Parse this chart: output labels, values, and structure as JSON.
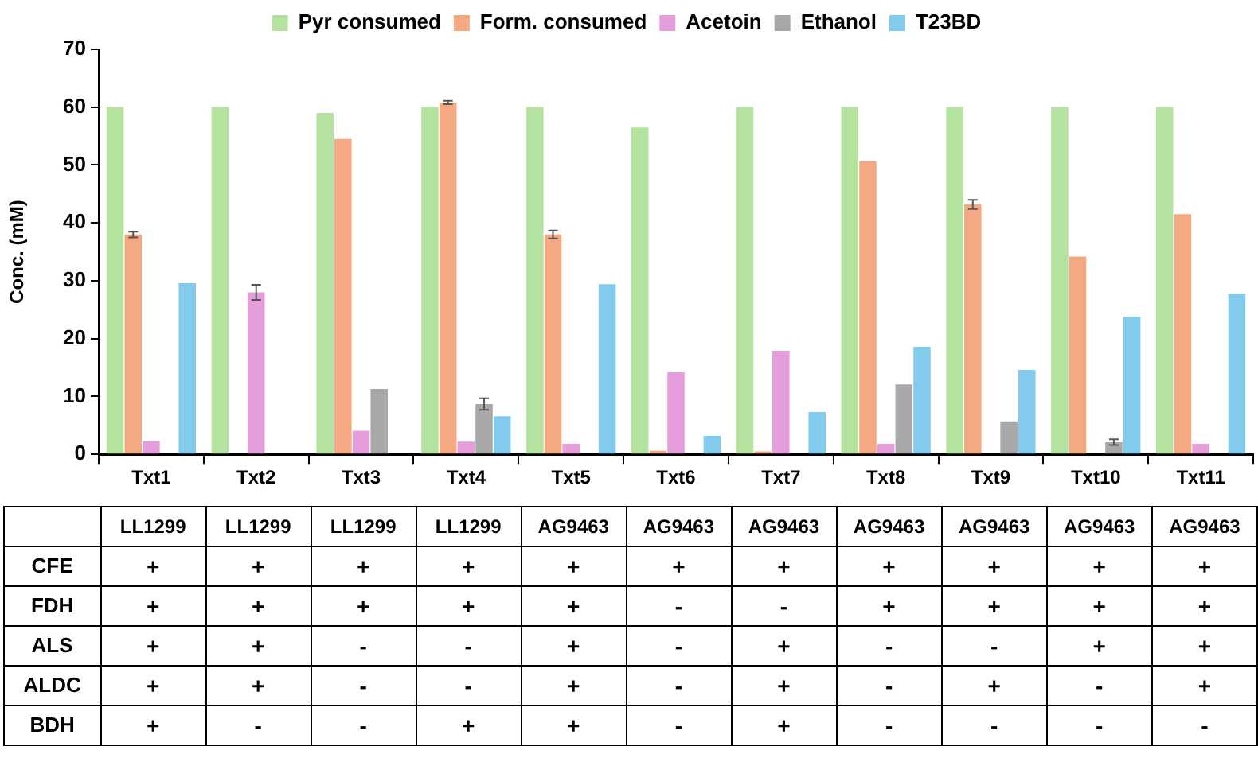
{
  "chart_data": [
    {
      "type": "bar",
      "ylabel": "Conc. (mM)",
      "categories": [
        "Txt1",
        "Txt2",
        "Txt3",
        "Txt4",
        "Txt5",
        "Txt6",
        "Txt7",
        "Txt8",
        "Txt9",
        "Txt10",
        "Txt11"
      ],
      "ylim": [
        0,
        70
      ],
      "yticks": [
        0,
        10,
        20,
        30,
        40,
        50,
        60,
        70
      ],
      "grid": false,
      "legend": "top",
      "series": [
        {
          "name": "Pyr consumed",
          "color": "#b4e3a0",
          "values": [
            60,
            60,
            59,
            60,
            60,
            56.5,
            60,
            60,
            60,
            60,
            60
          ]
        },
        {
          "name": "Form. consumed",
          "color": "#f4a982",
          "values": [
            38,
            null,
            54.5,
            60.8,
            38,
            0.6,
            0.5,
            50.7,
            43.2,
            34.2,
            41.5
          ],
          "errors": [
            0.5,
            null,
            null,
            0.3,
            0.7,
            null,
            null,
            null,
            0.8,
            null,
            null
          ]
        },
        {
          "name": "Acetoin",
          "color": "#e69ddc",
          "values": [
            2.3,
            28,
            4.1,
            2.2,
            1.8,
            14.2,
            17.9,
            1.8,
            null,
            null,
            1.8
          ],
          "errors": [
            null,
            1.3,
            null,
            null,
            null,
            null,
            null,
            null,
            null,
            null,
            null
          ]
        },
        {
          "name": "Ethanol",
          "color": "#a8a8a8",
          "values": [
            null,
            null,
            11.3,
            8.7,
            null,
            null,
            null,
            12.1,
            5.7,
            2.1,
            null
          ],
          "errors": [
            null,
            null,
            null,
            1,
            null,
            null,
            null,
            null,
            null,
            0.5,
            null
          ]
        },
        {
          "name": "T23BD",
          "color": "#82cbec",
          "values": [
            29.6,
            null,
            null,
            6.6,
            29.4,
            3.2,
            7.3,
            18.6,
            14.6,
            23.8,
            27.8
          ]
        }
      ]
    },
    {
      "type": "other",
      "categories": [
        "LL1299",
        "LL1299",
        "LL1299",
        "LL1299",
        "AG9463",
        "AG9463",
        "AG9463",
        "AG9463",
        "AG9463",
        "AG9463",
        "AG9463"
      ],
      "y_categories": [
        "CFE",
        "FDH",
        "ALS",
        "ALDC",
        "BDH"
      ],
      "cell_labels": [
        [
          "+",
          "+",
          "+",
          "+",
          "+",
          "+",
          "+",
          "+",
          "+",
          "+",
          "+"
        ],
        [
          "+",
          "+",
          "+",
          "+",
          "+",
          "-",
          "-",
          "+",
          "+",
          "+",
          "+"
        ],
        [
          "+",
          "+",
          "-",
          "-",
          "+",
          "-",
          "+",
          "-",
          "-",
          "+",
          "+"
        ],
        [
          "+",
          "+",
          "-",
          "-",
          "+",
          "-",
          "+",
          "-",
          "+",
          "-",
          "+"
        ],
        [
          "+",
          "-",
          "-",
          "+",
          "+",
          "-",
          "+",
          "-",
          "-",
          "-",
          "-"
        ]
      ]
    }
  ]
}
